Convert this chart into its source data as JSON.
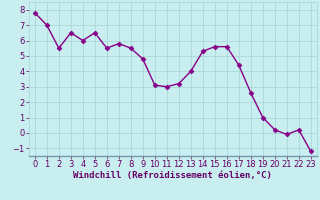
{
  "x": [
    0,
    1,
    2,
    3,
    4,
    5,
    6,
    7,
    8,
    9,
    10,
    11,
    12,
    13,
    14,
    15,
    16,
    17,
    18,
    19,
    20,
    21,
    22,
    23
  ],
  "y": [
    7.8,
    7.0,
    5.5,
    6.5,
    6.0,
    6.5,
    5.5,
    5.8,
    5.5,
    4.8,
    3.1,
    3.0,
    3.2,
    4.0,
    5.3,
    5.6,
    5.6,
    4.4,
    2.6,
    1.0,
    0.2,
    -0.1,
    0.2,
    -1.2
  ],
  "line_color": "#880088",
  "marker": "D",
  "marker_size": 2.5,
  "line_width": 1.0,
  "bg_color": "#c8eef0",
  "grid_color": "#aad8d8",
  "xlabel": "Windchill (Refroidissement éolien,°C)",
  "xlabel_color": "#660066",
  "xlabel_fontsize": 6.5,
  "tick_color": "#660066",
  "tick_fontsize": 6.0,
  "yticks": [
    -1,
    0,
    1,
    2,
    3,
    4,
    5,
    6,
    7,
    8
  ],
  "xticks": [
    0,
    1,
    2,
    3,
    4,
    5,
    6,
    7,
    8,
    9,
    10,
    11,
    12,
    13,
    14,
    15,
    16,
    17,
    18,
    19,
    20,
    21,
    22,
    23
  ],
  "ylim": [
    -1.5,
    8.5
  ],
  "xlim": [
    -0.5,
    23.5
  ],
  "spine_color": "#aad8d8"
}
